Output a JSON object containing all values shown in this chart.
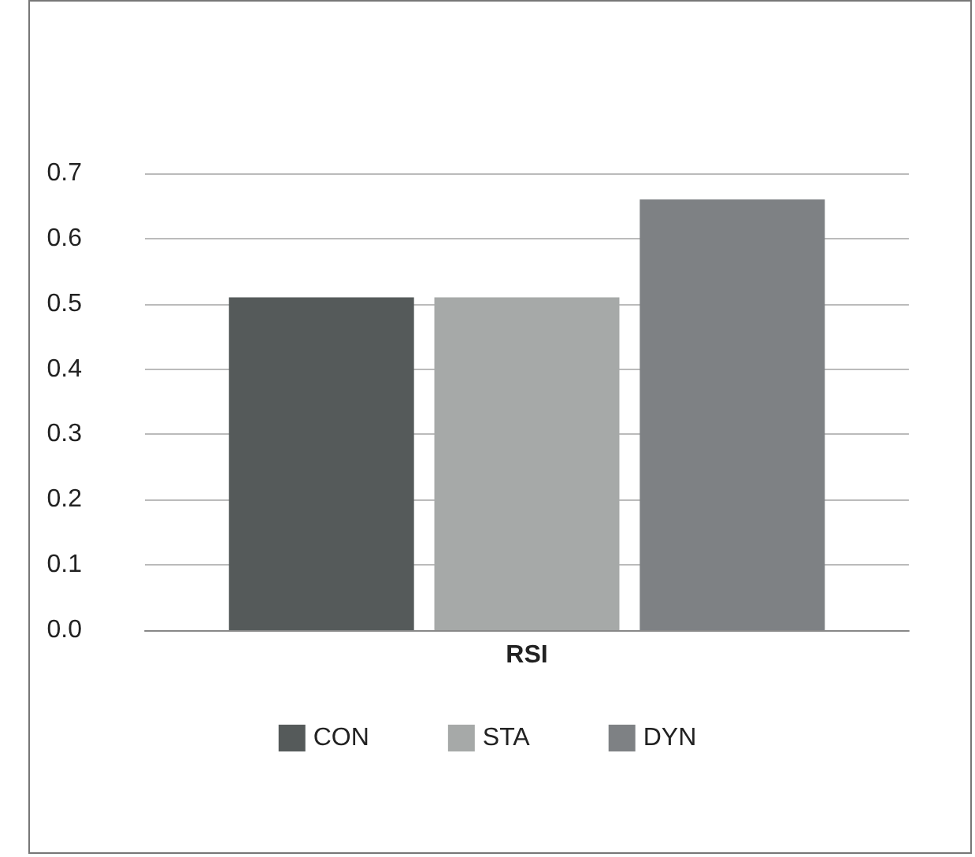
{
  "chart_data": {
    "type": "bar",
    "categories": [
      "RSI"
    ],
    "series": [
      {
        "name": "CON",
        "color": "#555a5a",
        "values": [
          0.51
        ]
      },
      {
        "name": "STA",
        "color": "#a6a9a8",
        "values": [
          0.51
        ]
      },
      {
        "name": "DYN",
        "color": "#7e8184",
        "values": [
          0.66
        ]
      }
    ],
    "ylim": [
      0,
      0.7
    ],
    "yticks": [
      {
        "value": 0,
        "label": "0.0"
      },
      0.1,
      0.2,
      0.3,
      0.4,
      0.5,
      0.6,
      0.7
    ],
    "grid": "y",
    "legend": "bottom"
  }
}
